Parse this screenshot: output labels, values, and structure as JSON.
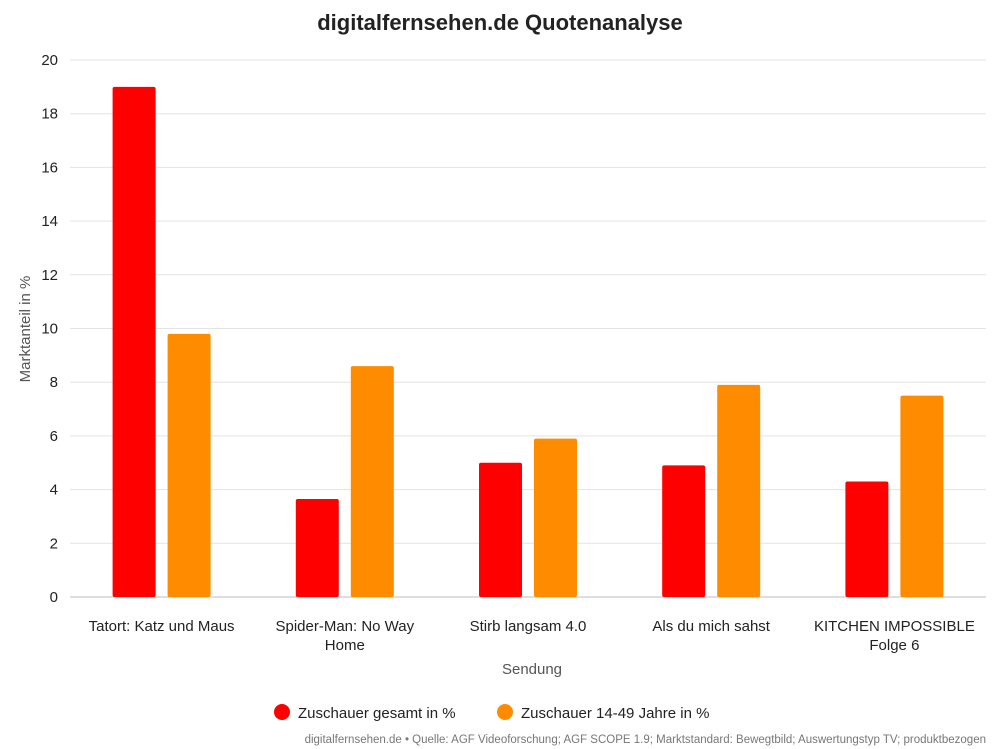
{
  "chart_data": {
    "type": "bar",
    "title": "digitalfernsehen.de Quotenanalyse",
    "xlabel": "Sendung",
    "ylabel": "Marktanteil in %",
    "ylim": [
      0,
      20
    ],
    "yticks": [
      0,
      2,
      4,
      6,
      8,
      10,
      12,
      14,
      16,
      18,
      20
    ],
    "grid": true,
    "legend_position": "bottom-center",
    "categories": [
      [
        "Tatort: Katz und Maus"
      ],
      [
        "Spider-Man: No Way",
        "Home"
      ],
      [
        "Stirb langsam 4.0"
      ],
      [
        "Als du mich sahst"
      ],
      [
        "KITCHEN IMPOSSIBLE",
        "Folge 6"
      ]
    ],
    "series": [
      {
        "name": "Zuschauer gesamt in %",
        "color": "#ff0000",
        "values": [
          19.0,
          3.65,
          5.0,
          4.9,
          4.3
        ]
      },
      {
        "name": "Zuschauer 14-49 Jahre in %",
        "color": "#ff8c00",
        "values": [
          9.8,
          8.6,
          5.9,
          7.9,
          7.5
        ]
      }
    ],
    "source": "digitalfernsehen.de • Quelle: AGF Videoforschung; AGF SCOPE 1.9; Marktstandard: Bewegtbild; Auswertungstyp TV; produktbezogen"
  }
}
